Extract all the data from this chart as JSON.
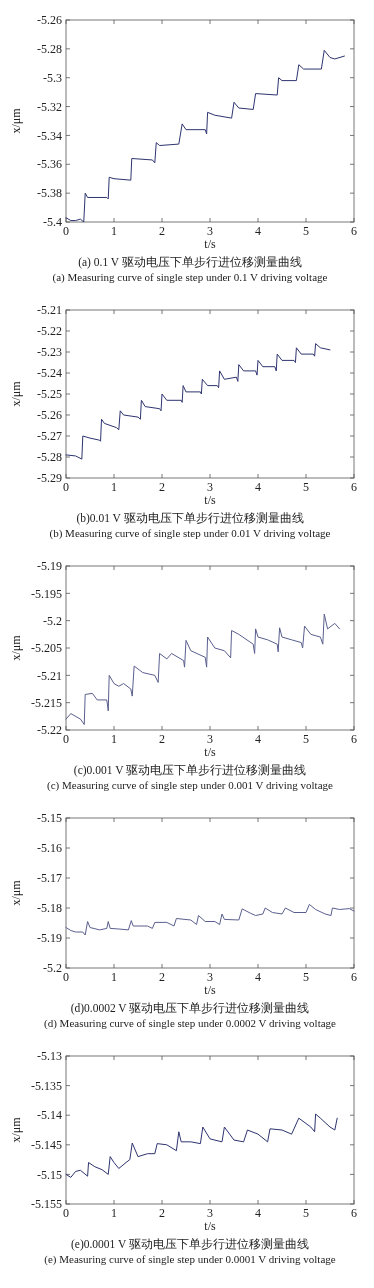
{
  "chart_data": [
    {
      "type": "line",
      "title": "(a) 0.1 V 驱动电压下单步行进位移测量曲线",
      "subtitle": "(a) Measuring curve of single step under 0.1 V driving voltage",
      "xlabel": "t/s",
      "ylabel": "x/μm",
      "xlim": [
        0,
        6
      ],
      "xticks": [
        0,
        1,
        2,
        3,
        4,
        5,
        6
      ],
      "ylim": [
        -5.4,
        -5.26
      ],
      "yticks": [
        -5.4,
        -5.38,
        -5.36,
        -5.34,
        -5.32,
        -5.3,
        -5.28,
        -5.26
      ],
      "x": [
        0,
        0.1,
        0.2,
        0.3,
        0.37,
        0.4,
        0.45,
        0.85,
        0.88,
        0.9,
        1.0,
        1.35,
        1.37,
        1.8,
        1.85,
        1.88,
        1.95,
        2.35,
        2.42,
        2.5,
        2.9,
        2.93,
        2.95,
        3.1,
        3.45,
        3.5,
        3.6,
        3.9,
        3.95,
        4.4,
        4.43,
        4.5,
        4.8,
        4.85,
        4.95,
        5.32,
        5.38,
        5.5,
        5.6,
        5.8
      ],
      "series": [
        {
          "color": "#2e3470",
          "values": [
            -5.397,
            -5.399,
            -5.399,
            -5.398,
            -5.4,
            -5.38,
            -5.383,
            -5.383,
            -5.384,
            -5.369,
            -5.37,
            -5.371,
            -5.356,
            -5.357,
            -5.359,
            -5.345,
            -5.347,
            -5.346,
            -5.332,
            -5.336,
            -5.336,
            -5.339,
            -5.324,
            -5.326,
            -5.328,
            -5.317,
            -5.321,
            -5.322,
            -5.311,
            -5.312,
            -5.3,
            -5.302,
            -5.302,
            -5.291,
            -5.294,
            -5.294,
            -5.281,
            -5.286,
            -5.287,
            -5.285
          ]
        }
      ]
    },
    {
      "type": "line",
      "title": "(b)0.01 V 驱动电压下单步行进位移测量曲线",
      "subtitle": "(b) Measuring curve of single step under 0.01 V driving voltage",
      "xlabel": "t/s",
      "ylabel": "x/μm",
      "xlim": [
        0,
        6
      ],
      "xticks": [
        0,
        1,
        2,
        3,
        4,
        5,
        6
      ],
      "ylim": [
        -5.29,
        -5.21
      ],
      "yticks": [
        -5.29,
        -5.28,
        -5.27,
        -5.26,
        -5.25,
        -5.24,
        -5.23,
        -5.22,
        -5.21
      ],
      "x": [
        0,
        0.2,
        0.33,
        0.35,
        0.5,
        0.7,
        0.72,
        0.74,
        0.8,
        1.05,
        1.1,
        1.13,
        1.2,
        1.5,
        1.55,
        1.57,
        1.65,
        1.95,
        1.98,
        2.0,
        2.1,
        2.4,
        2.42,
        2.44,
        2.5,
        2.8,
        2.82,
        2.84,
        2.95,
        3.15,
        3.18,
        3.2,
        3.3,
        3.55,
        3.58,
        3.6,
        3.7,
        3.95,
        3.98,
        4.0,
        4.1,
        4.35,
        4.38,
        4.4,
        4.5,
        4.75,
        4.78,
        4.8,
        4.9,
        5.15,
        5.18,
        5.2,
        5.3,
        5.5
      ],
      "series": [
        {
          "color": "#2e3470",
          "values": [
            -5.279,
            -5.2795,
            -5.281,
            -5.27,
            -5.271,
            -5.272,
            -5.2725,
            -5.262,
            -5.264,
            -5.266,
            -5.267,
            -5.258,
            -5.26,
            -5.261,
            -5.262,
            -5.253,
            -5.256,
            -5.257,
            -5.258,
            -5.25,
            -5.253,
            -5.253,
            -5.254,
            -5.246,
            -5.249,
            -5.249,
            -5.25,
            -5.243,
            -5.246,
            -5.246,
            -5.247,
            -5.239,
            -5.243,
            -5.242,
            -5.244,
            -5.236,
            -5.239,
            -5.239,
            -5.241,
            -5.234,
            -5.237,
            -5.237,
            -5.239,
            -5.231,
            -5.234,
            -5.234,
            -5.235,
            -5.228,
            -5.231,
            -5.231,
            -5.232,
            -5.226,
            -5.228,
            -5.229
          ]
        }
      ]
    },
    {
      "type": "line",
      "title": "(c)0.001 V 驱动电压下单步行进位移测量曲线",
      "subtitle": "(c) Measuring curve of single step under 0.001 V driving voltage",
      "xlabel": "t/s",
      "ylabel": "x/μm",
      "xlim": [
        0,
        6
      ],
      "xticks": [
        0,
        1,
        2,
        3,
        4,
        5,
        6
      ],
      "ylim": [
        -5.22,
        -5.19
      ],
      "yticks": [
        -5.22,
        -5.215,
        -5.21,
        -5.205,
        -5.2,
        -5.195,
        -5.19
      ],
      "x": [
        0,
        0.1,
        0.3,
        0.38,
        0.4,
        0.55,
        0.65,
        0.85,
        0.88,
        0.9,
        1.0,
        1.1,
        1.2,
        1.35,
        1.38,
        1.42,
        1.6,
        1.85,
        1.92,
        1.95,
        2.1,
        2.2,
        2.45,
        2.47,
        2.5,
        2.6,
        2.9,
        2.93,
        2.95,
        3.1,
        3.3,
        3.43,
        3.45,
        3.6,
        3.9,
        3.93,
        3.95,
        4.0,
        4.2,
        4.4,
        4.42,
        4.45,
        4.5,
        4.7,
        4.9,
        4.93,
        4.97,
        5.1,
        5.3,
        5.35,
        5.38,
        5.45,
        5.6,
        5.7
      ],
      "series": [
        {
          "color": "#5a5f8e",
          "values": [
            -5.218,
            -5.217,
            -5.218,
            -5.219,
            -5.2135,
            -5.2133,
            -5.2145,
            -5.2145,
            -5.2165,
            -5.21,
            -5.2115,
            -5.212,
            -5.2115,
            -5.2125,
            -5.2138,
            -5.2083,
            -5.2095,
            -5.21,
            -5.2113,
            -5.206,
            -5.207,
            -5.206,
            -5.2073,
            -5.2085,
            -5.2036,
            -5.2055,
            -5.2067,
            -5.2085,
            -5.203,
            -5.205,
            -5.2055,
            -5.2068,
            -5.2018,
            -5.2025,
            -5.2043,
            -5.206,
            -5.2015,
            -5.203,
            -5.2035,
            -5.2043,
            -5.2057,
            -5.2013,
            -5.203,
            -5.2035,
            -5.204,
            -5.205,
            -5.201,
            -5.2025,
            -5.203,
            -5.2043,
            -5.1988,
            -5.2015,
            -5.2005,
            -5.2015
          ]
        }
      ]
    },
    {
      "type": "line",
      "title": "(d)0.0002 V 驱动电压下单步行进位移测量曲线",
      "subtitle": "(d) Measuring curve of single step under 0.0002 V driving voltage",
      "xlabel": "t/s",
      "ylabel": "x/μm",
      "xlim": [
        0,
        6
      ],
      "xticks": [
        0,
        1,
        2,
        3,
        4,
        5,
        6
      ],
      "ylim": [
        -5.2,
        -5.15
      ],
      "yticks": [
        -5.2,
        -5.19,
        -5.18,
        -5.17,
        -5.16,
        -5.15
      ],
      "x": [
        0,
        0.1,
        0.2,
        0.35,
        0.4,
        0.45,
        0.5,
        0.7,
        0.85,
        0.88,
        0.92,
        1.1,
        1.3,
        1.36,
        1.4,
        1.7,
        1.8,
        1.85,
        2.1,
        2.25,
        2.3,
        2.6,
        2.72,
        2.76,
        2.9,
        3.1,
        3.2,
        3.25,
        3.3,
        3.6,
        3.67,
        3.85,
        3.95,
        4.1,
        4.15,
        4.3,
        4.5,
        4.57,
        4.75,
        5.0,
        5.07,
        5.2,
        5.4,
        5.52,
        5.55,
        5.7,
        5.9,
        6.0
      ],
      "series": [
        {
          "color": "#5a5f8e",
          "values": [
            -5.1865,
            -5.1875,
            -5.188,
            -5.188,
            -5.189,
            -5.1845,
            -5.1865,
            -5.1873,
            -5.1868,
            -5.1845,
            -5.1868,
            -5.187,
            -5.1873,
            -5.1842,
            -5.186,
            -5.186,
            -5.1868,
            -5.1848,
            -5.1848,
            -5.186,
            -5.1835,
            -5.184,
            -5.1855,
            -5.1825,
            -5.1845,
            -5.1845,
            -5.1855,
            -5.182,
            -5.1838,
            -5.184,
            -5.1803,
            -5.1818,
            -5.1825,
            -5.182,
            -5.18,
            -5.1815,
            -5.182,
            -5.18,
            -5.1815,
            -5.1815,
            -5.1788,
            -5.1805,
            -5.182,
            -5.1825,
            -5.18,
            -5.1805,
            -5.1802,
            -5.181
          ]
        }
      ]
    },
    {
      "type": "line",
      "title": "(e)0.0001 V 驱动电压下单步行进位移测量曲线",
      "subtitle": "(e) Measuring curve of single step under 0.0001 V driving voltage",
      "xlabel": "t/s",
      "ylabel": "x/μm",
      "xlim": [
        0,
        6
      ],
      "xticks": [
        0,
        1,
        2,
        3,
        4,
        5,
        6
      ],
      "ylim": [
        -5.155,
        -5.13
      ],
      "yticks": [
        -5.155,
        -5.15,
        -5.145,
        -5.14,
        -5.135,
        -5.13
      ],
      "x": [
        0,
        0.1,
        0.2,
        0.3,
        0.45,
        0.47,
        0.6,
        0.75,
        0.88,
        0.92,
        1.0,
        1.1,
        1.25,
        1.33,
        1.38,
        1.5,
        1.7,
        1.85,
        1.9,
        2.1,
        2.3,
        2.35,
        2.4,
        2.6,
        2.8,
        2.85,
        3.0,
        3.25,
        3.3,
        3.5,
        3.7,
        3.78,
        4.0,
        4.2,
        4.25,
        4.5,
        4.7,
        4.85,
        5.1,
        5.18,
        5.2,
        5.3,
        5.5,
        5.6,
        5.65
      ],
      "series": [
        {
          "color": "#2e3470",
          "values": [
            -5.15,
            -5.1505,
            -5.1495,
            -5.1493,
            -5.1503,
            -5.148,
            -5.1487,
            -5.1492,
            -5.15,
            -5.147,
            -5.148,
            -5.149,
            -5.148,
            -5.1475,
            -5.1447,
            -5.147,
            -5.1465,
            -5.1465,
            -5.1448,
            -5.145,
            -5.146,
            -5.1428,
            -5.1445,
            -5.1445,
            -5.1448,
            -5.142,
            -5.144,
            -5.1445,
            -5.142,
            -5.1442,
            -5.1445,
            -5.1425,
            -5.1432,
            -5.1445,
            -5.1423,
            -5.1425,
            -5.1432,
            -5.1405,
            -5.142,
            -5.1428,
            -5.1398,
            -5.1405,
            -5.142,
            -5.1425,
            -5.1405
          ]
        }
      ]
    }
  ]
}
